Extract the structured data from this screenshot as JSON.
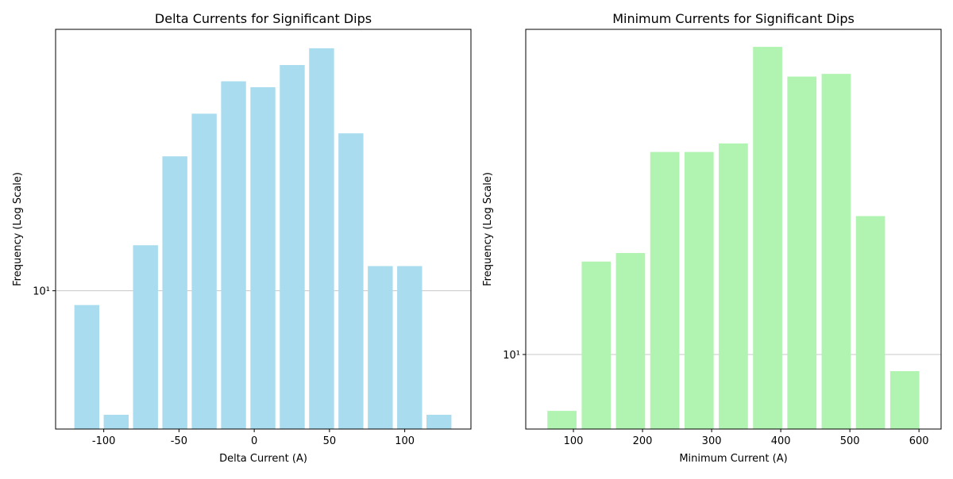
{
  "chart_data": [
    {
      "type": "histogram",
      "title": "Delta Currents for Significant Dips",
      "xlabel": "Delta Current (A)",
      "ylabel": "Frequency (Log Scale)",
      "bins": [
        -121,
        -101.5,
        -82,
        -62.5,
        -43,
        -23.5,
        -4,
        15.5,
        35,
        54.5,
        74,
        93.5,
        113,
        132.5
      ],
      "values": [
        9,
        4,
        14,
        27,
        37,
        47,
        45,
        53,
        60,
        32,
        12,
        12,
        4
      ],
      "color": "#a9dcee",
      "log_y": true,
      "grid": true,
      "xlim": [
        -132,
        144
      ],
      "ylim": [
        3.6,
        69
      ],
      "xticks": [
        -100,
        -50,
        0,
        50,
        100
      ],
      "yticks": [
        {
          "value": 10,
          "label": "10¹"
        }
      ]
    },
    {
      "type": "histogram",
      "title": "Minimum Currents for Significant Dips",
      "xlabel": "Minimum Current (A)",
      "ylabel": "Frequency (Log Scale)",
      "bins": [
        58.6,
        108.2,
        157.8,
        207.4,
        257,
        306.6,
        356.2,
        405.8,
        455.4,
        505,
        554.6,
        604.2
      ],
      "values": [
        7,
        18,
        19,
        36,
        36,
        38,
        70,
        58,
        59,
        24,
        9
      ],
      "color": "#b1f3b1",
      "log_y": true,
      "grid": true,
      "xlim": [
        31,
        632
      ],
      "ylim": [
        6.24,
        78.2
      ],
      "xticks": [
        100,
        200,
        300,
        400,
        500,
        600
      ],
      "yticks": [
        {
          "value": 10,
          "label": "10¹"
        }
      ]
    }
  ]
}
